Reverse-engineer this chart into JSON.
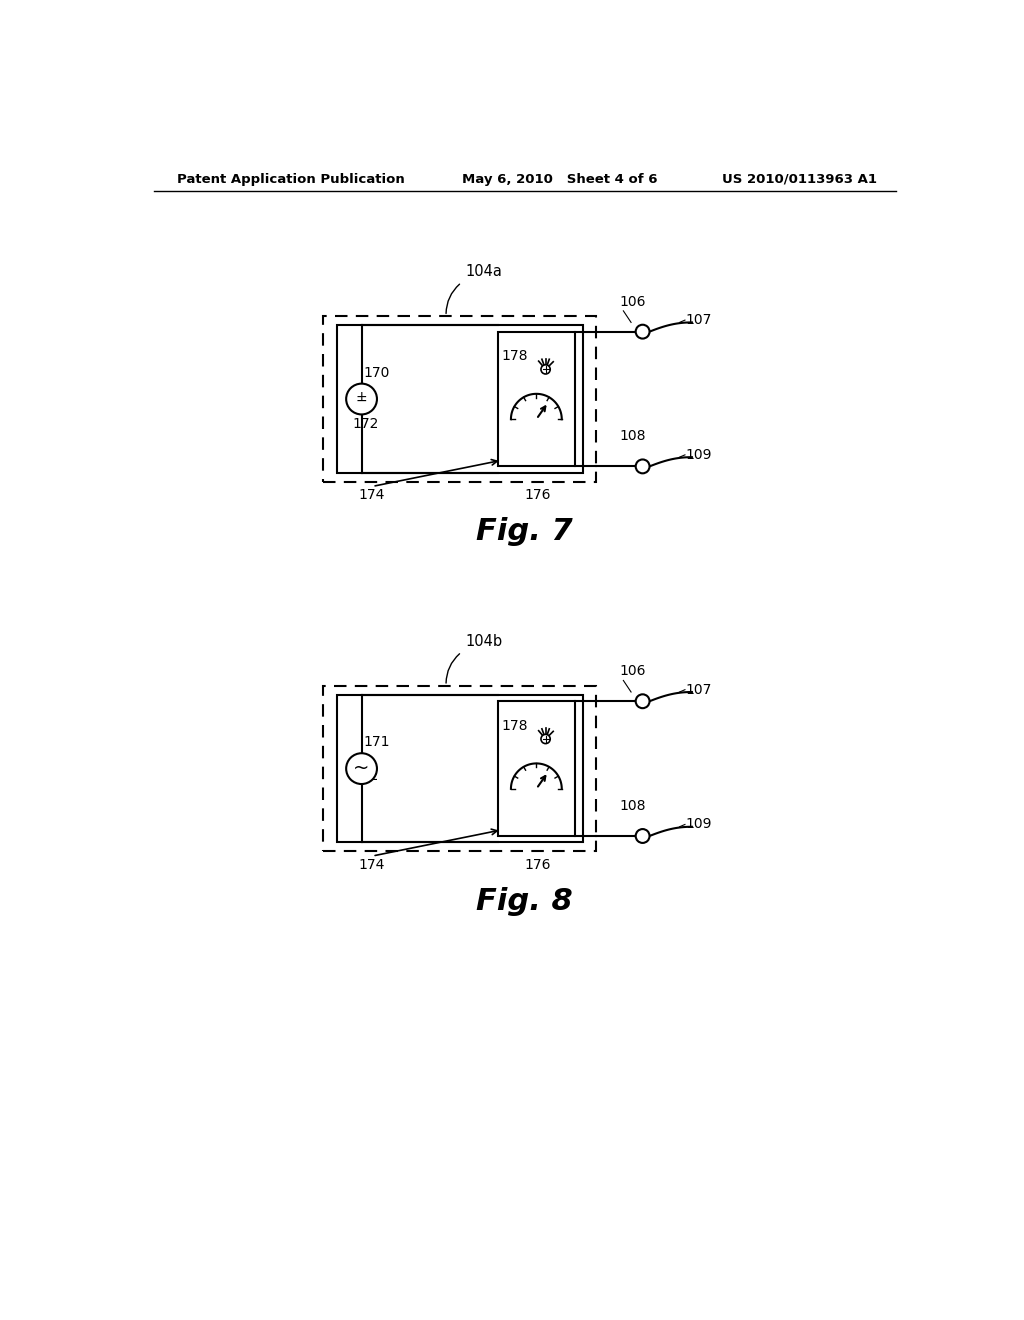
{
  "bg_color": "#ffffff",
  "header_left": "Patent Application Publication",
  "header_mid": "May 6, 2010   Sheet 4 of 6",
  "header_right": "US 2010/0113963 A1",
  "fig7_label": "Fig. 7",
  "fig8_label": "Fig. 8",
  "fig7_caption_label": "104a",
  "fig8_caption_label": "104b"
}
